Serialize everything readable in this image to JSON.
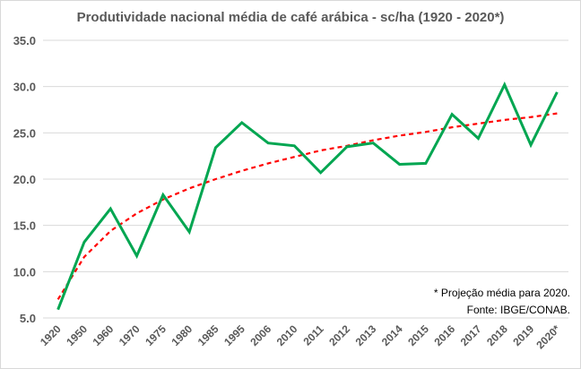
{
  "chart_data": {
    "type": "line",
    "title": "Produtividade nacional média de café arábica - sc/ha (1920 - 2020*)",
    "xlabel": "",
    "ylabel": "",
    "categories": [
      "1920",
      "1950",
      "1960",
      "1970",
      "1975",
      "1980",
      "1985",
      "1995",
      "2006",
      "2010",
      "2011",
      "2012",
      "2013",
      "2014",
      "2015",
      "2016",
      "2017",
      "2018",
      "2019",
      "2020*"
    ],
    "series": [
      {
        "values": [
          5.9,
          13.2,
          16.8,
          11.7,
          18.3,
          14.3,
          23.4,
          26.1,
          23.9,
          23.6,
          20.7,
          23.5,
          23.9,
          21.6,
          21.7,
          27.0,
          24.4,
          30.2,
          23.7,
          29.4
        ],
        "color": "#00a651",
        "style": "solid"
      }
    ],
    "trendline": {
      "type": "logarithmic",
      "color": "#ff0000",
      "style": "dashed",
      "values": [
        7.0,
        11.6,
        14.4,
        16.3,
        17.8,
        19.0,
        20.0,
        20.9,
        21.7,
        22.4,
        23.1,
        23.6,
        24.2,
        24.7,
        25.1,
        25.6,
        26.0,
        26.4,
        26.7,
        27.1
      ]
    },
    "ylim": [
      5,
      35
    ],
    "yticks": [
      "5.0",
      "10.0",
      "15.0",
      "20.0",
      "25.0",
      "30.0",
      "35.0"
    ],
    "grid": true,
    "legend": "none",
    "annotations": [
      "* Projeção média para 2020.",
      "Fonte: IBGE/CONAB."
    ]
  }
}
